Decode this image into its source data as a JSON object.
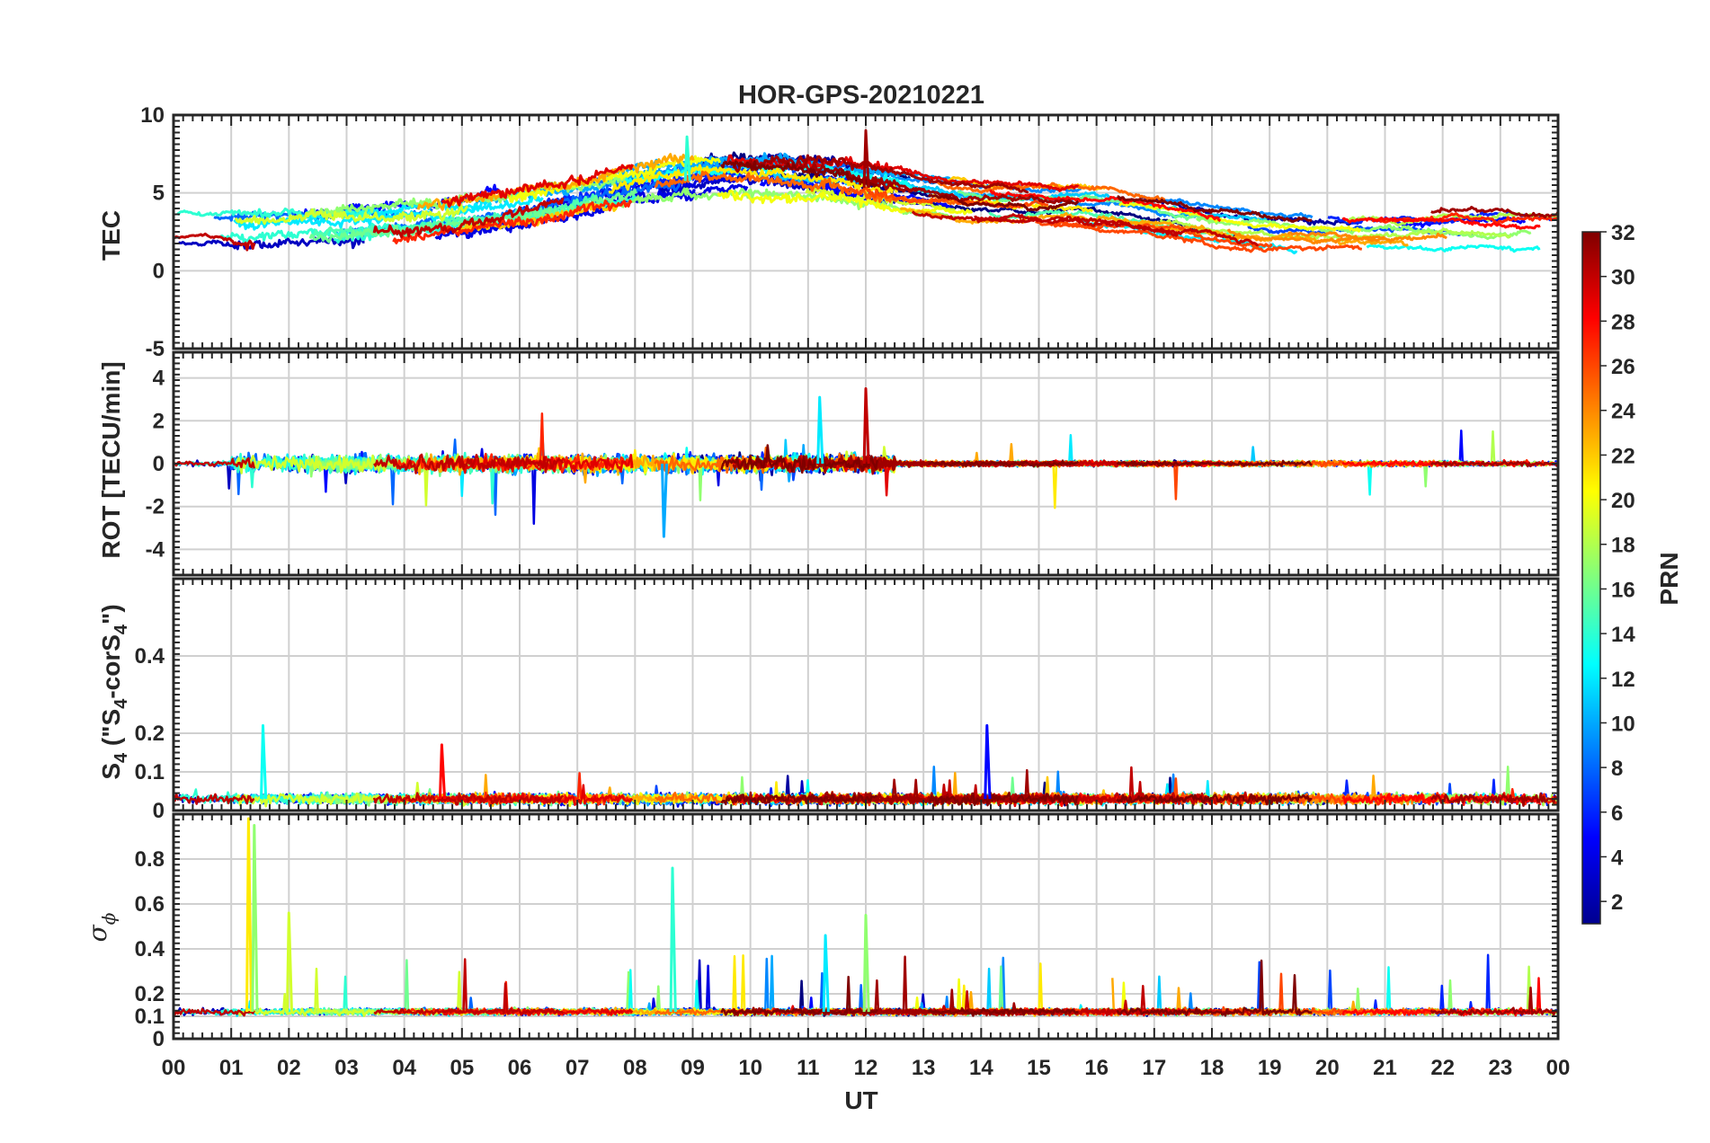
{
  "chart_data": {
    "type": "line",
    "title": "HOR-GPS-20210221",
    "xlabel": "UT",
    "x_tick_labels": [
      "00",
      "01",
      "02",
      "03",
      "04",
      "05",
      "06",
      "07",
      "08",
      "09",
      "10",
      "11",
      "12",
      "13",
      "14",
      "15",
      "16",
      "17",
      "18",
      "19",
      "20",
      "21",
      "22",
      "23",
      "00"
    ],
    "xlim": [
      0,
      24
    ],
    "grid": true,
    "colorbar": {
      "label": "PRN",
      "range": [
        1,
        32
      ],
      "tick_labels": [
        "2",
        "4",
        "6",
        "8",
        "10",
        "12",
        "14",
        "16",
        "18",
        "20",
        "22",
        "24",
        "26",
        "28",
        "30",
        "32"
      ],
      "colormap": "jet"
    },
    "panels": [
      {
        "id": "tec",
        "ylabel": "TEC",
        "ylim": [
          -5,
          10
        ],
        "tick_labels": [
          "10",
          "5",
          "0",
          "-5"
        ],
        "tick_values": [
          10,
          5,
          0,
          -5
        ]
      },
      {
        "id": "rot",
        "ylabel": "ROT [TECU/min]",
        "ylim": [
          -5.2,
          5.2
        ],
        "tick_labels": [
          "4",
          "2",
          "0",
          "-2",
          "-4"
        ],
        "tick_values": [
          4,
          2,
          0,
          -2,
          -4
        ]
      },
      {
        "id": "s4",
        "ylabel_main": "S",
        "ylabel_sub": "4",
        "ylabel_rest": " (\"S",
        "ylabel_sub2": "4",
        "ylabel_end": "-corS",
        "ylabel_sub3": "4",
        "ylabel_close": "\")",
        "ylim": [
          0,
          0.6
        ],
        "tick_labels": [
          "0.4",
          "0.2",
          "0.1",
          "0"
        ],
        "tick_values": [
          0.4,
          0.2,
          0.1,
          0
        ]
      },
      {
        "id": "sigma",
        "ylabel_sym": "σ",
        "ylabel_sub": "ϕ",
        "ylim": [
          0,
          1.0
        ],
        "tick_labels": [
          "0.8",
          "0.6",
          "0.4",
          "0.2",
          "0.1",
          "0"
        ],
        "tick_values": [
          0.8,
          0.6,
          0.4,
          0.2,
          0.1,
          0
        ]
      }
    ],
    "series_summary": {
      "prn_count": 32,
      "tec_typical_range": [
        0,
        9
      ],
      "rot_typical_range": [
        -3.5,
        3.5
      ],
      "s4_typical_range": [
        0,
        0.22
      ],
      "sigma_phi_typical_range": [
        0.09,
        1.0
      ]
    }
  }
}
